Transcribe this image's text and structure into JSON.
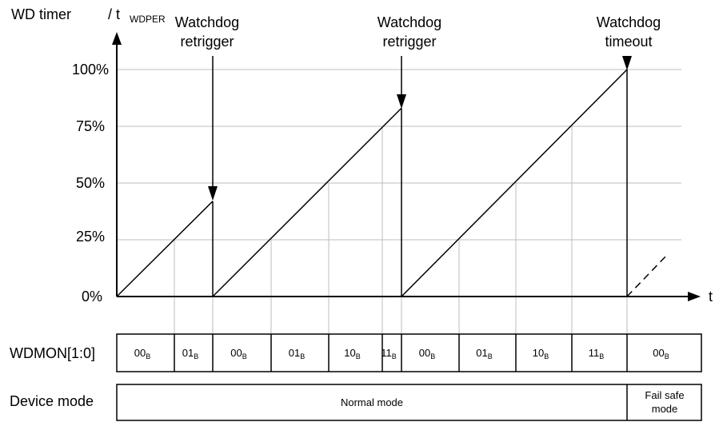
{
  "axis": {
    "y_label": "WD timer",
    "y_label_sep": "/ t",
    "y_label_sub": "WDPER",
    "x_label": "t",
    "ticks": [
      "0%",
      "25%",
      "50%",
      "75%",
      "100%"
    ]
  },
  "events": [
    {
      "line1": "Watchdog",
      "line2": "retrigger"
    },
    {
      "line1": "Watchdog",
      "line2": "retrigger"
    },
    {
      "line1": "Watchdog",
      "line2": "timeout"
    }
  ],
  "ramps": [
    {
      "from": 0,
      "to": 42
    },
    {
      "from": 0,
      "to": 83
    },
    {
      "from": 0,
      "to": 100
    }
  ],
  "wdmon": {
    "label": "WDMON[1:0]",
    "subscript": "B",
    "cells": [
      "00",
      "01",
      "00",
      "01",
      "10",
      "11",
      "00",
      "01",
      "10",
      "11",
      "00"
    ]
  },
  "device_mode": {
    "label": "Device mode",
    "normal": "Normal mode",
    "failsafe_line1": "Fail safe",
    "failsafe_line2": "mode"
  }
}
